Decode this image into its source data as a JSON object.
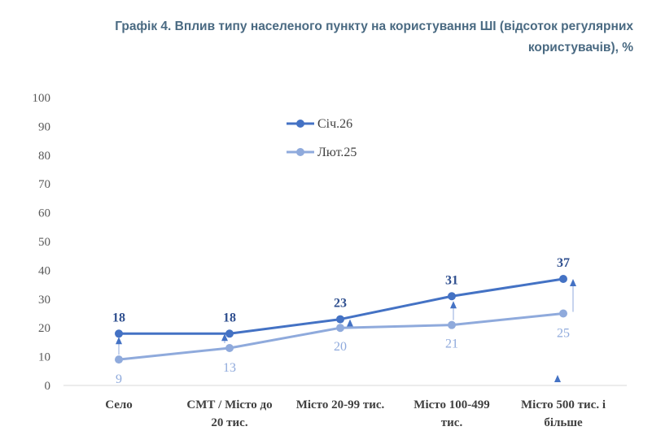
{
  "title_line1": "Графік 4. Вплив типу населеного пункту на користування ШІ (відсоток регулярних",
  "title_line2": "користувачів), %",
  "chart_data": {
    "type": "line",
    "title": "Графік 4. Вплив типу населеного пункту на користування ШІ (відсоток регулярних користувачів), %",
    "categories": [
      [
        "Село"
      ],
      [
        "СМТ / Місто до",
        "20 тис."
      ],
      [
        "Місто 20-99 тис."
      ],
      [
        "Місто 100-499",
        "тис."
      ],
      [
        "Місто 500 тис. і",
        "більше"
      ]
    ],
    "series": [
      {
        "name": "Січ.26",
        "values": [
          18,
          18,
          23,
          31,
          37
        ],
        "color": "#4472c4",
        "labels": [
          "18",
          "18",
          "23",
          "31",
          "37"
        ]
      },
      {
        "name": "Лют.25",
        "values": [
          9,
          13,
          20,
          21,
          25
        ],
        "color": "#8faadc",
        "labels": [
          "9",
          "13",
          "20",
          "21",
          "25"
        ]
      }
    ],
    "ylim": [
      0,
      100
    ],
    "yticks": [
      "0",
      "10",
      "20",
      "30",
      "40",
      "50",
      "60",
      "70",
      "80",
      "90",
      "100"
    ],
    "xlabel": "",
    "ylabel": "",
    "legend_position": "top-center"
  }
}
